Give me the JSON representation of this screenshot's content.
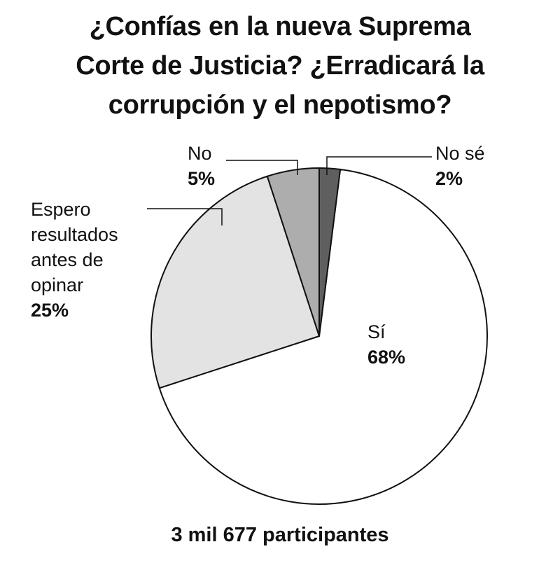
{
  "chart_data": {
    "type": "pie",
    "title_lines": [
      "¿Confías en la nueva Suprema",
      "Corte de Justicia? ¿Erradicará la",
      "corrupción y el nepotismo?"
    ],
    "slices": [
      {
        "label": [
          "Sí"
        ],
        "value": 68,
        "value_label": "68%",
        "color": "#ffffff"
      },
      {
        "label": [
          "Espero",
          "resultados",
          "antes de",
          "opinar"
        ],
        "value": 25,
        "value_label": "25%",
        "color": "#e3e3e3"
      },
      {
        "label": [
          "No"
        ],
        "value": 5,
        "value_label": "5%",
        "color": "#adadad"
      },
      {
        "label": [
          "No sé"
        ],
        "value": 2,
        "value_label": "2%",
        "color": "#5f5f5f"
      }
    ],
    "footer": "3 mil 677 participantes"
  }
}
